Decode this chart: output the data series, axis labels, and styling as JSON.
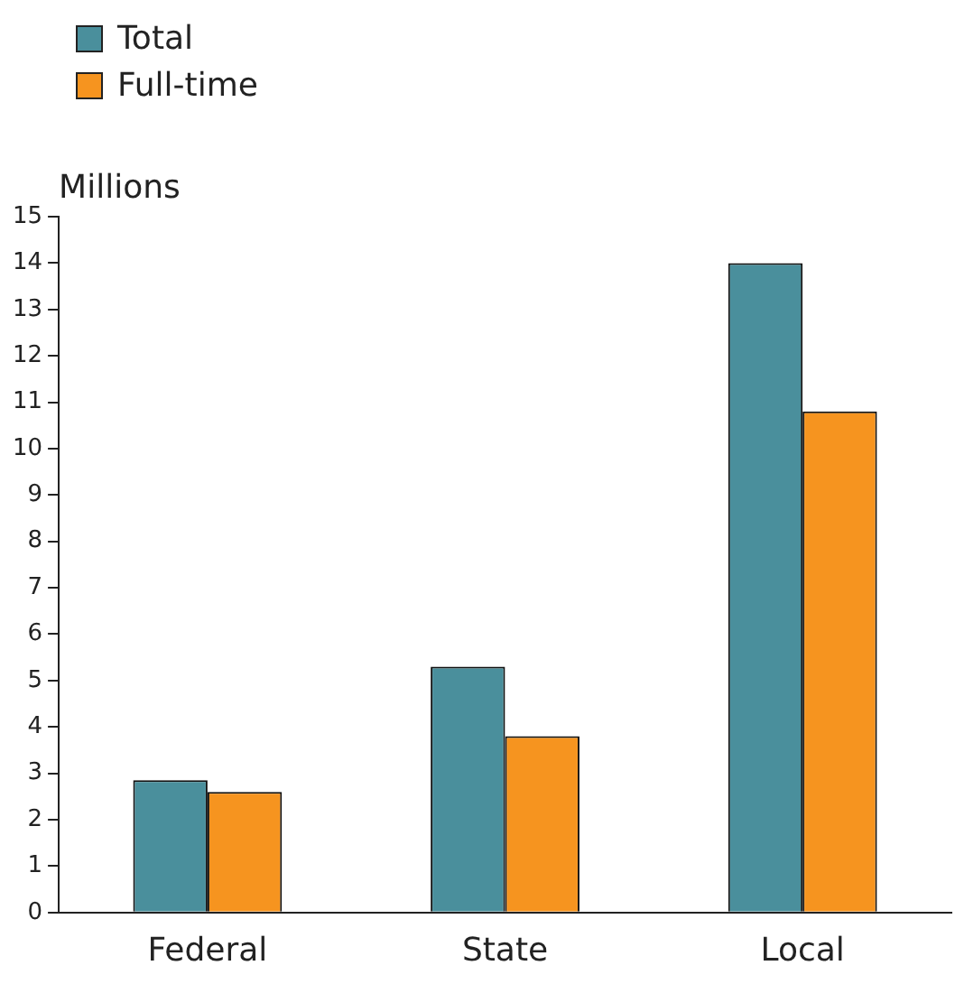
{
  "chart_data": {
    "type": "bar",
    "ylabel": "Millions",
    "categories": [
      "Federal",
      "State",
      "Local"
    ],
    "series": [
      {
        "name": "Total",
        "color": "#4a8f9c",
        "values": [
          2.85,
          5.3,
          14.0
        ]
      },
      {
        "name": "Full-time",
        "color": "#f6941f",
        "values": [
          2.6,
          3.8,
          10.8
        ]
      }
    ],
    "ylim": [
      0,
      15
    ],
    "yticks": [
      0,
      1,
      2,
      3,
      4,
      5,
      6,
      7,
      8,
      9,
      10,
      11,
      12,
      13,
      14,
      15
    ],
    "legend": "top left"
  }
}
